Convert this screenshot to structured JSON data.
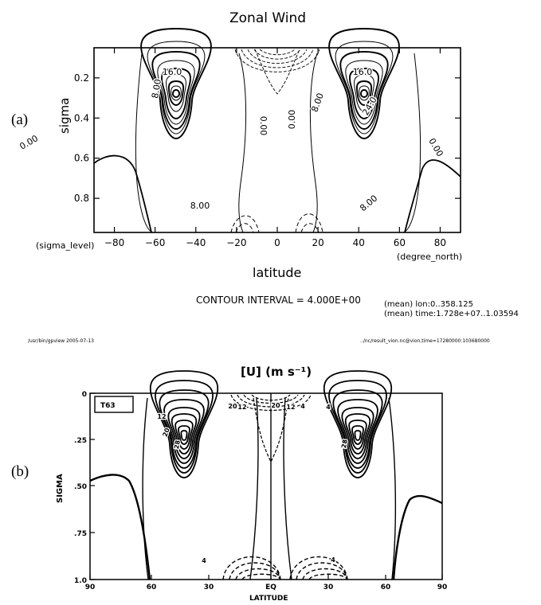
{
  "panel_a": {
    "label": "(a)",
    "title": "Zonal Wind",
    "ylabel": "sigma",
    "xlabel": "latitude",
    "x_unit_left": "(sigma_level)",
    "x_unit_right": "(degree_north)",
    "contour_interval": "CONTOUR INTERVAL = 4.000E+00",
    "mean_lon": "(mean) lon:0..358.125",
    "mean_time": "(mean) time:1.728e+07..1.03594",
    "footer_left": "/usr/bin/gpview  2005-07-13",
    "footer_right": "../nc/result_vion.nc@vion,time=17280000:103680000"
  },
  "panel_b": {
    "label": "(b)",
    "title": "[U] (m s⁻¹)",
    "box_label": "T63",
    "ylabel": "SIGMA",
    "xlabel": "LATITUDE"
  },
  "chart_data": [
    {
      "type": "contour",
      "title": "Zonal Wind",
      "xlabel": "latitude",
      "ylabel": "sigma",
      "x_ticks": [
        -80,
        -60,
        -40,
        -20,
        0,
        20,
        40,
        60,
        80
      ],
      "y_ticks": [
        0.2,
        0.4,
        0.6,
        0.8
      ],
      "xlim": [
        -90,
        90
      ],
      "ylim": [
        0.05,
        0.97
      ],
      "y_inverted": true,
      "contour_interval": 4.0,
      "contour_labels": [
        "16.0",
        "8.00",
        "0.00",
        "0.00",
        "0.00",
        "16.0",
        "8.00",
        "24.0",
        "0.00",
        "8.00",
        "8.00"
      ],
      "jets": [
        {
          "lat": -42,
          "sigma": 0.25,
          "max": 28
        },
        {
          "lat": 42,
          "sigma": 0.25,
          "max": 28
        }
      ]
    },
    {
      "type": "contour",
      "title": "[U] (m s⁻¹)",
      "xlabel": "LATITUDE",
      "ylabel": "SIGMA",
      "x_ticks": [
        "90",
        "60",
        "30",
        "EQ",
        "30",
        "60",
        "90"
      ],
      "y_ticks": [
        "0",
        ".25",
        ".50",
        ".75",
        "1.0"
      ],
      "xlim": [
        -90,
        90
      ],
      "ylim": [
        0,
        1.0
      ],
      "y_inverted": true,
      "contour_labels": [
        "20",
        "12",
        "4",
        "4",
        "12",
        "20",
        "12",
        "20",
        "28",
        "28",
        "4",
        "4"
      ],
      "jets": [
        {
          "lat": -40,
          "sigma": 0.22,
          "max": 28
        },
        {
          "lat": 40,
          "sigma": 0.22,
          "max": 28
        }
      ]
    }
  ]
}
